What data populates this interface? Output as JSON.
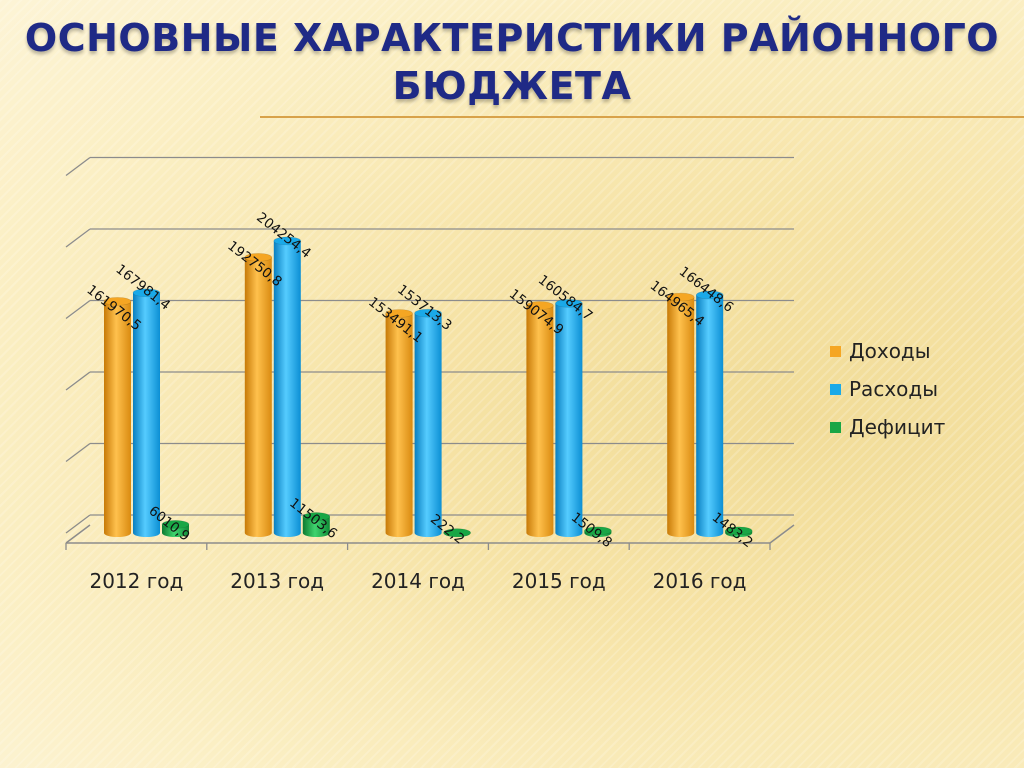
{
  "slide": {
    "title_line1": "Основные характеристики районного",
    "title_line2": "бюджета"
  },
  "chart_data": {
    "type": "bar",
    "categories": [
      "2012 год",
      "2013 год",
      "2014 год",
      "2015 год",
      "2016 год"
    ],
    "series": [
      {
        "name": "Доходы",
        "color": "#f5a623",
        "values": [
          161970.5,
          192750.8,
          153491.1,
          159074.9,
          164965.4
        ],
        "labels": [
          "161970,5",
          "192750,8",
          "153491,1",
          "159074,9",
          "164965,4"
        ]
      },
      {
        "name": "Расходы",
        "color": "#1aa9e8",
        "values": [
          167981.4,
          204254.4,
          153713.3,
          160584.7,
          166448.6
        ],
        "labels": [
          "167981,4",
          "204254,4",
          "153713,3",
          "160584,7",
          "166448,6"
        ]
      },
      {
        "name": "Дефицит",
        "color": "#19a645",
        "values": [
          6010.9,
          11503.6,
          222.2,
          1509.8,
          1483.2
        ],
        "labels": [
          "6010,9",
          "11503,6",
          "222,2",
          "1509,8",
          "1483,2"
        ]
      }
    ],
    "ylim": [
      0,
      250000
    ],
    "grid": true,
    "legend": "right",
    "title": "",
    "xlabel": "",
    "ylabel": ""
  }
}
